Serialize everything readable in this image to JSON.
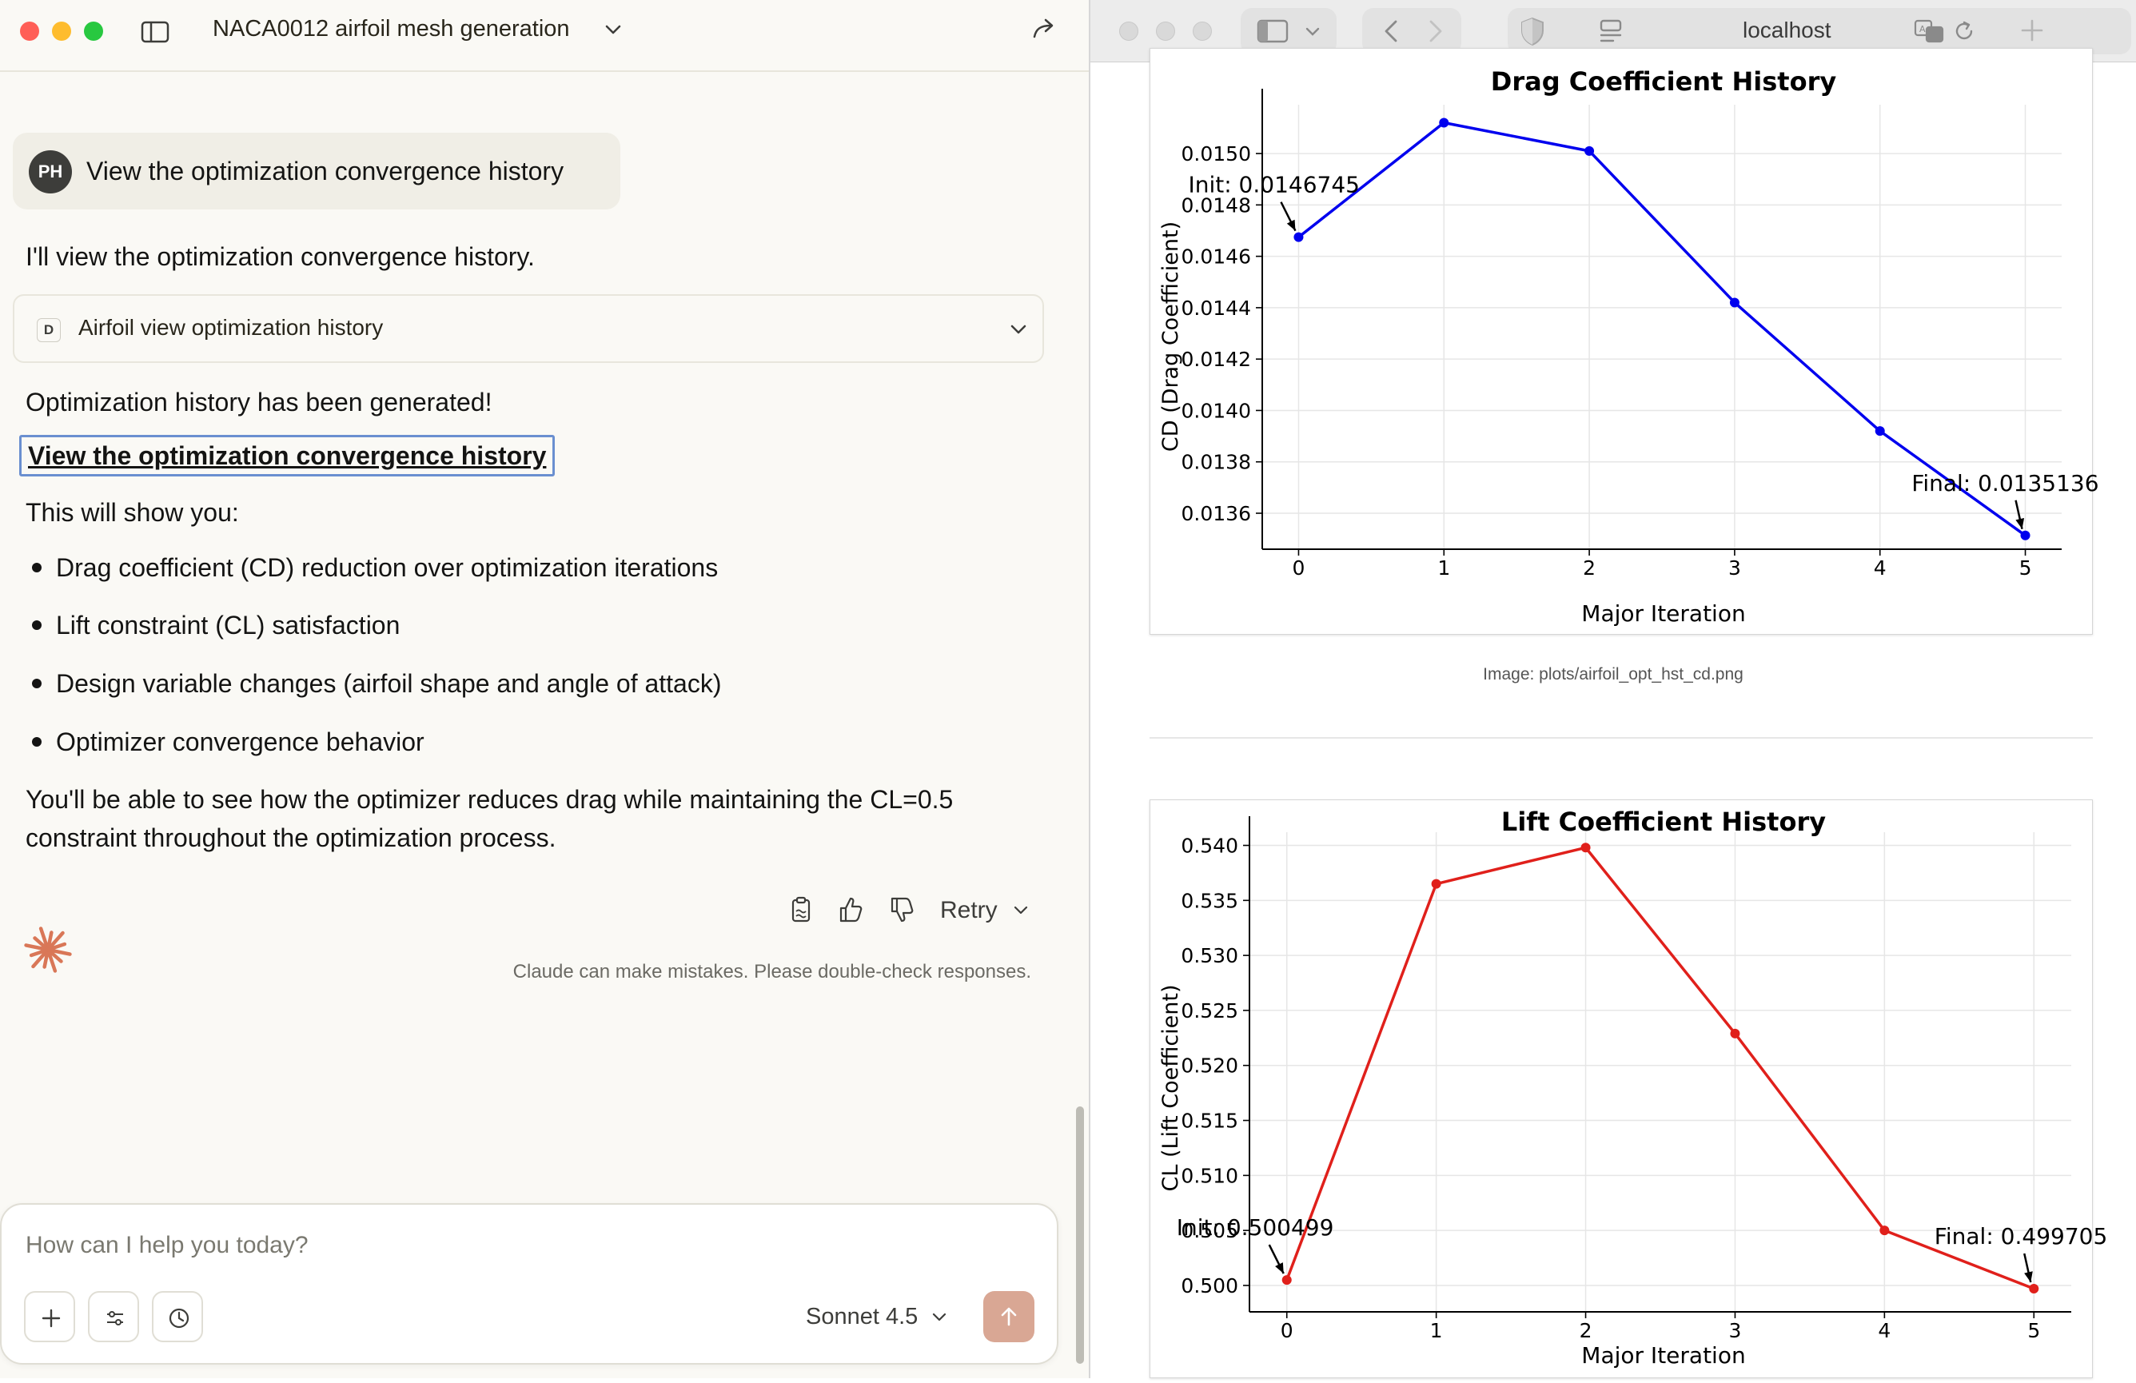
{
  "claude": {
    "conversation_title": "NACA0012 airfoil mesh generation",
    "user": {
      "avatar_initials": "PH",
      "message": "View the optimization convergence history"
    },
    "assistant": {
      "intro": "I'll view the optimization convergence history.",
      "tool_call": {
        "badge": "D",
        "label": "Airfoil view optimization history"
      },
      "status": "Optimization history has been generated!",
      "link_text": "View the optimization convergence history",
      "shows_intro": "This will show you:",
      "bullets": [
        "Drag coefficient (CD) reduction over optimization iterations",
        "Lift constraint (CL) satisfaction",
        "Design variable changes (airfoil shape and angle of attack)",
        "Optimizer convergence behavior"
      ],
      "closing": "You'll be able to see how the optimizer reduces drag while maintaining the CL=0.5 constraint throughout the optimization process."
    },
    "actions": {
      "retry_label": "Retry"
    },
    "disclaimer": "Claude can make mistakes. Please double-check responses.",
    "composer": {
      "placeholder": "How can I help you today?",
      "model": "Sonnet 4.5"
    },
    "accent_color": "#d97757"
  },
  "browser": {
    "url": "localhost",
    "image_caption": "Image: plots/airfoil_opt_hst_cd.png"
  },
  "chart_data": [
    {
      "type": "line",
      "title": "Drag Coefficient History",
      "xlabel": "Major Iteration",
      "ylabel": "CD (Drag Coefficient)",
      "x": [
        0,
        1,
        2,
        3,
        4,
        5
      ],
      "series": [
        {
          "values": [
            0.0146745,
            0.01512,
            0.01501,
            0.01442,
            0.01392,
            0.0135136
          ],
          "color": "#0000ee"
        }
      ],
      "xticks": [
        "0",
        "1",
        "2",
        "3",
        "4",
        "5"
      ],
      "yticks": [
        "0.0136",
        "0.0138",
        "0.0140",
        "0.0142",
        "0.0144",
        "0.0146",
        "0.0148",
        "0.0150"
      ],
      "ylim": [
        0.01346,
        0.01519
      ],
      "xlim": [
        -0.25,
        5.25
      ],
      "grid": true,
      "annotations": [
        {
          "text": "Init: 0.0146745",
          "x": 0,
          "y": 0.0146745
        },
        {
          "text": "Final: 0.0135136",
          "x": 5,
          "y": 0.0135136
        }
      ]
    },
    {
      "type": "line",
      "title": "Lift Coefficient History",
      "xlabel": "Major Iteration",
      "ylabel": "CL (Lift Coefficient)",
      "x": [
        0,
        1,
        2,
        3,
        4,
        5
      ],
      "series": [
        {
          "values": [
            0.500499,
            0.5365,
            0.5398,
            0.5229,
            0.505,
            0.499705
          ],
          "color": "#e0201b"
        }
      ],
      "xticks": [
        "0",
        "1",
        "2",
        "3",
        "4",
        "5"
      ],
      "yticks": [
        "0.500",
        "0.505",
        "0.510",
        "0.515",
        "0.520",
        "0.525",
        "0.530",
        "0.535",
        "0.540"
      ],
      "ylim": [
        0.4976,
        0.5412
      ],
      "xlim": [
        -0.25,
        5.25
      ],
      "grid": true,
      "annotations": [
        {
          "text": "Init: 0.500499",
          "x": 0,
          "y": 0.500499
        },
        {
          "text": "Final: 0.499705",
          "x": 5,
          "y": 0.499705
        }
      ]
    }
  ]
}
